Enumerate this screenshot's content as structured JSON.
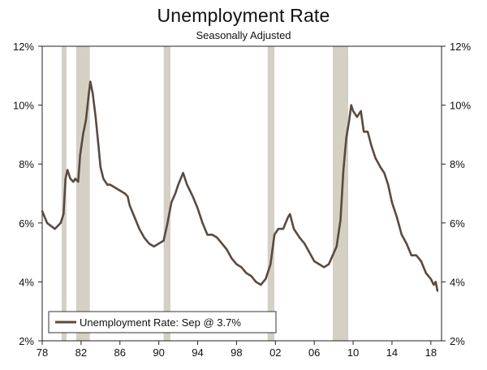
{
  "header": {
    "title": "Unemployment Rate",
    "subtitle": "Seasonally Adjusted"
  },
  "chart_data": {
    "type": "line",
    "title": "Unemployment Rate",
    "subtitle": "Seasonally Adjusted",
    "xlabel": "",
    "ylabel": "",
    "xlim": [
      1978,
      2019.1
    ],
    "ylim": [
      2,
      12
    ],
    "x_tick_labels": [
      "78",
      "82",
      "86",
      "90",
      "94",
      "98",
      "02",
      "06",
      "10",
      "14",
      "18"
    ],
    "x_tick_values": [
      1978,
      1982,
      1986,
      1990,
      1994,
      1998,
      2002,
      2006,
      2010,
      2014,
      2018
    ],
    "y_tick_labels": [
      "2%",
      "4%",
      "6%",
      "8%",
      "10%",
      "12%"
    ],
    "y_tick_values": [
      2,
      4,
      6,
      8,
      10,
      12
    ],
    "recessions": [
      [
        1980.0,
        1980.5
      ],
      [
        1981.5,
        1982.9
      ],
      [
        1990.5,
        1991.2
      ],
      [
        2001.2,
        2001.9
      ],
      [
        2007.9,
        2009.5
      ]
    ],
    "legend": {
      "placement": "bottom-left",
      "label": "Unemployment Rate: Sep @ 3.7%"
    },
    "series": [
      {
        "name": "Unemployment Rate",
        "color": "#5a4a3f",
        "points": [
          [
            1978.0,
            6.4
          ],
          [
            1978.5,
            6.0
          ],
          [
            1978.9,
            5.9
          ],
          [
            1979.3,
            5.8
          ],
          [
            1979.6,
            5.9
          ],
          [
            1979.9,
            6.0
          ],
          [
            1980.2,
            6.3
          ],
          [
            1980.4,
            7.5
          ],
          [
            1980.6,
            7.8
          ],
          [
            1980.9,
            7.5
          ],
          [
            1981.2,
            7.4
          ],
          [
            1981.4,
            7.5
          ],
          [
            1981.7,
            7.4
          ],
          [
            1981.9,
            8.3
          ],
          [
            1982.2,
            9.0
          ],
          [
            1982.5,
            9.5
          ],
          [
            1982.8,
            10.4
          ],
          [
            1982.95,
            10.8
          ],
          [
            1983.2,
            10.4
          ],
          [
            1983.5,
            9.6
          ],
          [
            1983.8,
            8.6
          ],
          [
            1984.0,
            7.9
          ],
          [
            1984.3,
            7.5
          ],
          [
            1984.7,
            7.3
          ],
          [
            1985.0,
            7.3
          ],
          [
            1985.5,
            7.2
          ],
          [
            1986.0,
            7.1
          ],
          [
            1986.5,
            7.0
          ],
          [
            1986.8,
            6.9
          ],
          [
            1987.0,
            6.6
          ],
          [
            1987.5,
            6.2
          ],
          [
            1988.0,
            5.8
          ],
          [
            1988.5,
            5.5
          ],
          [
            1989.0,
            5.3
          ],
          [
            1989.5,
            5.2
          ],
          [
            1990.0,
            5.3
          ],
          [
            1990.5,
            5.4
          ],
          [
            1990.9,
            6.0
          ],
          [
            1991.3,
            6.7
          ],
          [
            1991.7,
            7.0
          ],
          [
            1992.0,
            7.3
          ],
          [
            1992.5,
            7.7
          ],
          [
            1992.9,
            7.3
          ],
          [
            1993.5,
            6.9
          ],
          [
            1994.0,
            6.5
          ],
          [
            1994.5,
            6.0
          ],
          [
            1995.0,
            5.6
          ],
          [
            1995.5,
            5.6
          ],
          [
            1996.0,
            5.5
          ],
          [
            1996.5,
            5.3
          ],
          [
            1997.0,
            5.1
          ],
          [
            1997.5,
            4.8
          ],
          [
            1998.0,
            4.6
          ],
          [
            1998.5,
            4.5
          ],
          [
            1999.0,
            4.3
          ],
          [
            1999.5,
            4.2
          ],
          [
            2000.0,
            4.0
          ],
          [
            2000.5,
            3.9
          ],
          [
            2001.0,
            4.1
          ],
          [
            2001.5,
            4.6
          ],
          [
            2001.9,
            5.6
          ],
          [
            2002.3,
            5.8
          ],
          [
            2002.8,
            5.8
          ],
          [
            2003.3,
            6.2
          ],
          [
            2003.5,
            6.3
          ],
          [
            2003.9,
            5.8
          ],
          [
            2004.5,
            5.5
          ],
          [
            2005.0,
            5.3
          ],
          [
            2005.5,
            5.0
          ],
          [
            2006.0,
            4.7
          ],
          [
            2006.5,
            4.6
          ],
          [
            2007.0,
            4.5
          ],
          [
            2007.5,
            4.6
          ],
          [
            2007.9,
            4.9
          ],
          [
            2008.3,
            5.2
          ],
          [
            2008.7,
            6.1
          ],
          [
            2009.0,
            7.8
          ],
          [
            2009.3,
            8.9
          ],
          [
            2009.6,
            9.5
          ],
          [
            2009.8,
            10.0
          ],
          [
            2010.0,
            9.8
          ],
          [
            2010.4,
            9.6
          ],
          [
            2010.8,
            9.8
          ],
          [
            2011.1,
            9.1
          ],
          [
            2011.5,
            9.1
          ],
          [
            2011.9,
            8.6
          ],
          [
            2012.3,
            8.2
          ],
          [
            2012.8,
            7.9
          ],
          [
            2013.2,
            7.7
          ],
          [
            2013.6,
            7.3
          ],
          [
            2014.0,
            6.7
          ],
          [
            2014.5,
            6.2
          ],
          [
            2015.0,
            5.6
          ],
          [
            2015.5,
            5.3
          ],
          [
            2016.0,
            4.9
          ],
          [
            2016.5,
            4.9
          ],
          [
            2017.0,
            4.7
          ],
          [
            2017.5,
            4.3
          ],
          [
            2018.0,
            4.1
          ],
          [
            2018.3,
            3.9
          ],
          [
            2018.5,
            4.0
          ],
          [
            2018.67,
            3.7
          ]
        ]
      }
    ]
  }
}
